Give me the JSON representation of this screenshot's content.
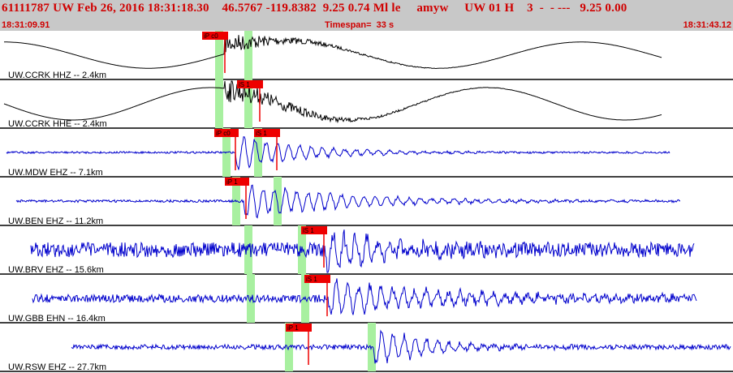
{
  "header": {
    "title": "61111787 UW Feb 26, 2016 18:31:18.30    46.5767 -119.8382  9.25 0.74 Ml le     amyw     UW 01 H    3  -  - ---   9.25 0.00",
    "start_time": "18:31:09.91",
    "timespan": "Timespan=  33 s",
    "end_time": "18:31:43.12"
  },
  "colors": {
    "header_bg": "#c8c8c8",
    "header_text": "#d00000",
    "trace_black": "#000000",
    "trace_blue": "#0000cc",
    "pick_red": "#ee0000",
    "window_green": "#a8f0a0"
  },
  "traces": [
    {
      "label": "UW.CCRK HHZ -- 2.4km",
      "color": "black",
      "picks": [
        {
          "text": "iP c0"
        }
      ]
    },
    {
      "label": "UW.CCRK HHE -- 2.4km",
      "color": "black",
      "picks": [
        {
          "text": "iS 1"
        }
      ]
    },
    {
      "label": "UW.MDW EHZ -- 7.1km",
      "color": "blue",
      "picks": [
        {
          "text": "iP c0"
        },
        {
          "text": "iS 1"
        }
      ]
    },
    {
      "label": "UW.BEN EHZ -- 11.2km",
      "color": "blue",
      "picks": [
        {
          "text": "iP 1"
        }
      ]
    },
    {
      "label": "UW.BRV EHZ -- 15.6km",
      "color": "blue",
      "picks": [
        {
          "text": "iS 1"
        }
      ]
    },
    {
      "label": "UW.GBB EHN -- 16.4km",
      "color": "blue",
      "picks": [
        {
          "text": "iS 1"
        }
      ]
    },
    {
      "label": "UW.RSW EHZ -- 27.7km",
      "color": "blue",
      "picks": [
        {
          "text": "iP 1"
        }
      ]
    }
  ]
}
